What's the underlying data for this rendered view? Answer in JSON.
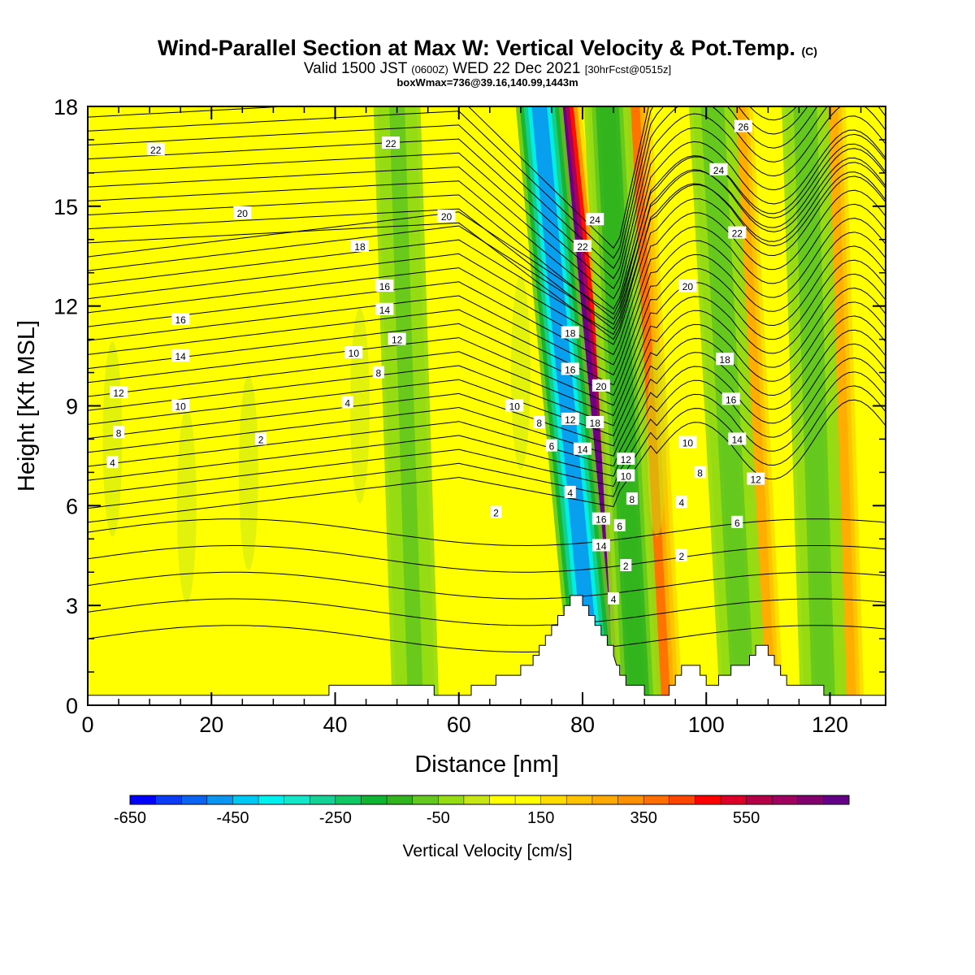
{
  "header": {
    "title": "Wind-Parallel Section at Max W: Vertical Velocity & Pot.Temp.",
    "copyright": "(C)",
    "valid_prefix": "Valid 1500 JST",
    "valid_utc": "(0600Z)",
    "valid_date": "WED 22 Dec 2021",
    "forecast": "[30hrFcst@0515z]",
    "box_info": "boxWmax=736@39.16,140.99,1443m"
  },
  "chart_data": {
    "type": "heatmap",
    "xlabel": "Distance [nm]",
    "ylabel": "Height [Kft MSL]",
    "xlim": [
      0,
      129
    ],
    "ylim": [
      0,
      18
    ],
    "x_ticks": [
      "0",
      "20",
      "40",
      "60",
      "80",
      "100",
      "120"
    ],
    "y_ticks": [
      "0",
      "3",
      "6",
      "9",
      "12",
      "15",
      "18"
    ],
    "colorbar": {
      "label": "Vertical Velocity [cm/s]",
      "tick_labels": [
        "-650",
        "-450",
        "-250",
        "-50",
        "150",
        "350",
        "550"
      ],
      "levels": [
        -700,
        -650,
        -600,
        -550,
        -500,
        -450,
        -400,
        -350,
        -300,
        -250,
        -200,
        -150,
        -100,
        -50,
        0,
        50,
        100,
        150,
        200,
        250,
        300,
        350,
        400,
        450,
        500,
        550,
        600,
        650
      ],
      "colors": [
        "#0000ff",
        "#0a3cf5",
        "#0a64f0",
        "#0a96f0",
        "#00c8f5",
        "#00f0f0",
        "#14e6c8",
        "#14d296",
        "#0fc864",
        "#0fb432",
        "#32b41e",
        "#64c81e",
        "#96dc14",
        "#c8e614",
        "#ffff00",
        "#ffff00",
        "#ffdc00",
        "#ffc300",
        "#ffaa00",
        "#ff9100",
        "#ff6e00",
        "#ff4600",
        "#ff0000",
        "#dc0028",
        "#b40046",
        "#a00060",
        "#82006e",
        "#640087"
      ]
    },
    "velocity_features": [
      {
        "kind": "updraft",
        "x_base": 86,
        "x_top": 76,
        "w_cm_s": 736
      },
      {
        "kind": "downdraft",
        "x_base": 82,
        "x_top": 73,
        "w_cm_s": -550
      },
      {
        "kind": "updraft",
        "x_base": 93,
        "x_top": 88,
        "w_cm_s": 300
      },
      {
        "kind": "downdraft",
        "x_base": 89,
        "x_top": 84,
        "w_cm_s": -200
      },
      {
        "kind": "updraft",
        "x_base": 110,
        "x_top": 105,
        "w_cm_s": 200
      },
      {
        "kind": "downdraft",
        "x_base": 106,
        "x_top": 101,
        "w_cm_s": -150
      },
      {
        "kind": "updraft",
        "x_base": 123,
        "x_top": 120,
        "w_cm_s": 200
      },
      {
        "kind": "downdraft",
        "x_base": 119,
        "x_top": 116,
        "w_cm_s": -150
      },
      {
        "kind": "downdraft",
        "x_base": 53,
        "x_top": 50,
        "w_cm_s": -120
      }
    ],
    "isentrope_labels": [
      {
        "value": "2",
        "x": 28,
        "y": 8.0
      },
      {
        "value": "2",
        "x": 66,
        "y": 5.8
      },
      {
        "value": "2",
        "x": 87,
        "y": 4.2
      },
      {
        "value": "2",
        "x": 96,
        "y": 4.5
      },
      {
        "value": "4",
        "x": 4,
        "y": 7.3
      },
      {
        "value": "4",
        "x": 42,
        "y": 9.1
      },
      {
        "value": "4",
        "x": 78,
        "y": 6.4
      },
      {
        "value": "4",
        "x": 85,
        "y": 3.2
      },
      {
        "value": "4",
        "x": 96,
        "y": 6.1
      },
      {
        "value": "6",
        "x": 75,
        "y": 7.8
      },
      {
        "value": "6",
        "x": 86,
        "y": 5.4
      },
      {
        "value": "6",
        "x": 105,
        "y": 5.5
      },
      {
        "value": "8",
        "x": 5,
        "y": 8.2
      },
      {
        "value": "8",
        "x": 47,
        "y": 10.0
      },
      {
        "value": "8",
        "x": 73,
        "y": 8.5
      },
      {
        "value": "8",
        "x": 88,
        "y": 6.2
      },
      {
        "value": "8",
        "x": 99,
        "y": 7.0
      },
      {
        "value": "10",
        "x": 15,
        "y": 9.0
      },
      {
        "value": "10",
        "x": 43,
        "y": 10.6
      },
      {
        "value": "10",
        "x": 69,
        "y": 9.0
      },
      {
        "value": "10",
        "x": 87,
        "y": 6.9
      },
      {
        "value": "10",
        "x": 97,
        "y": 7.9
      },
      {
        "value": "12",
        "x": 5,
        "y": 9.4
      },
      {
        "value": "12",
        "x": 50,
        "y": 11.0
      },
      {
        "value": "12",
        "x": 78,
        "y": 8.6
      },
      {
        "value": "12",
        "x": 87,
        "y": 7.4
      },
      {
        "value": "12",
        "x": 108,
        "y": 6.8
      },
      {
        "value": "14",
        "x": 15,
        "y": 10.5
      },
      {
        "value": "14",
        "x": 48,
        "y": 11.9
      },
      {
        "value": "14",
        "x": 80,
        "y": 7.7
      },
      {
        "value": "14",
        "x": 83,
        "y": 4.8
      },
      {
        "value": "14",
        "x": 105,
        "y": 8.0
      },
      {
        "value": "16",
        "x": 15,
        "y": 11.6
      },
      {
        "value": "16",
        "x": 48,
        "y": 12.6
      },
      {
        "value": "16",
        "x": 78,
        "y": 10.1
      },
      {
        "value": "16",
        "x": 83,
        "y": 5.6
      },
      {
        "value": "16",
        "x": 104,
        "y": 9.2
      },
      {
        "value": "18",
        "x": 44,
        "y": 13.8
      },
      {
        "value": "18",
        "x": 78,
        "y": 11.2
      },
      {
        "value": "18",
        "x": 82,
        "y": 8.5
      },
      {
        "value": "18",
        "x": 103,
        "y": 10.4
      },
      {
        "value": "20",
        "x": 25,
        "y": 14.8
      },
      {
        "value": "20",
        "x": 58,
        "y": 14.7
      },
      {
        "value": "20",
        "x": 83,
        "y": 9.6
      },
      {
        "value": "20",
        "x": 97,
        "y": 12.6
      },
      {
        "value": "22",
        "x": 11,
        "y": 16.7
      },
      {
        "value": "22",
        "x": 49,
        "y": 16.9
      },
      {
        "value": "22",
        "x": 80,
        "y": 13.8
      },
      {
        "value": "22",
        "x": 105,
        "y": 14.2
      },
      {
        "value": "24",
        "x": 82,
        "y": 14.6
      },
      {
        "value": "24",
        "x": 102,
        "y": 16.1
      },
      {
        "value": "26",
        "x": 106,
        "y": 17.4
      }
    ],
    "terrain": [
      [
        0,
        0.3
      ],
      [
        39,
        0.3
      ],
      [
        39,
        0.6
      ],
      [
        56,
        0.6
      ],
      [
        56,
        0.3
      ],
      [
        62,
        0.3
      ],
      [
        62,
        0.6
      ],
      [
        66,
        0.6
      ],
      [
        66,
        0.9
      ],
      [
        70,
        0.9
      ],
      [
        70,
        1.2
      ],
      [
        72,
        1.2
      ],
      [
        72,
        1.5
      ],
      [
        73,
        1.5
      ],
      [
        73,
        1.8
      ],
      [
        74,
        1.8
      ],
      [
        74,
        2.1
      ],
      [
        75,
        2.1
      ],
      [
        75,
        2.4
      ],
      [
        76,
        2.4
      ],
      [
        76,
        2.7
      ],
      [
        77,
        2.7
      ],
      [
        77,
        3.0
      ],
      [
        78,
        3.0
      ],
      [
        78,
        3.3
      ],
      [
        80,
        3.3
      ],
      [
        80,
        3.0
      ],
      [
        81,
        3.0
      ],
      [
        81,
        2.7
      ],
      [
        82,
        2.7
      ],
      [
        82,
        2.4
      ],
      [
        83,
        2.4
      ],
      [
        83,
        2.1
      ],
      [
        84,
        2.1
      ],
      [
        84,
        1.8
      ],
      [
        85,
        1.8
      ],
      [
        85,
        1.5
      ],
      [
        85.5,
        1.2
      ],
      [
        86,
        1.2
      ],
      [
        86,
        0.9
      ],
      [
        87,
        0.9
      ],
      [
        87,
        0.6
      ],
      [
        90,
        0.6
      ],
      [
        90,
        0.3
      ],
      [
        94,
        0.3
      ],
      [
        94,
        0.6
      ],
      [
        95,
        0.6
      ],
      [
        95,
        0.9
      ],
      [
        96,
        0.9
      ],
      [
        96,
        1.2
      ],
      [
        99,
        1.2
      ],
      [
        99,
        0.9
      ],
      [
        100,
        0.9
      ],
      [
        100,
        0.6
      ],
      [
        102,
        0.6
      ],
      [
        102,
        0.9
      ],
      [
        104,
        0.9
      ],
      [
        104,
        1.2
      ],
      [
        107,
        1.2
      ],
      [
        107,
        1.5
      ],
      [
        108,
        1.5
      ],
      [
        108,
        1.8
      ],
      [
        110,
        1.8
      ],
      [
        110,
        1.5
      ],
      [
        111,
        1.5
      ],
      [
        111,
        1.2
      ],
      [
        112,
        1.2
      ],
      [
        112,
        0.9
      ],
      [
        113,
        0.9
      ],
      [
        113,
        0.6
      ],
      [
        119,
        0.6
      ],
      [
        119,
        0.3
      ],
      [
        129,
        0.3
      ],
      [
        129,
        0
      ]
    ]
  }
}
